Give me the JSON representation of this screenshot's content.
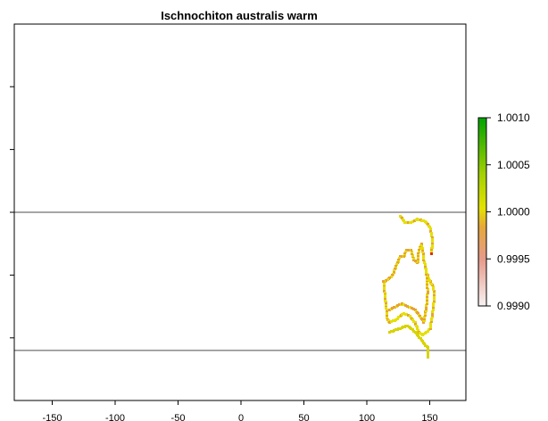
{
  "map": {
    "title": "Ischnochiton australis warm",
    "x_axis": {
      "range": [
        -190,
        180
      ],
      "ticks": [
        -150,
        -100,
        -50,
        0,
        50,
        100,
        150
      ],
      "tick_labels": [
        "-150",
        "-100",
        "-50",
        "0",
        "50",
        "100",
        "150"
      ]
    },
    "y_axis": {
      "range": [
        -90,
        90
      ],
      "ticks": [
        -80,
        -60,
        -40,
        -20,
        0,
        20,
        40,
        60,
        80
      ]
    },
    "reference_lines_lat": [
      0,
      -44
    ],
    "colors": {
      "line": "#4d4d4d",
      "frame": "#000000"
    },
    "legend": {
      "labels": [
        "1.0010",
        "1.0005",
        "1.0000",
        "0.9995",
        "0.9990"
      ],
      "values": [
        1.001,
        1.0005,
        1.0,
        0.9995,
        0.999
      ],
      "color_stops": [
        "#f2f2f2",
        "#e8a0a0",
        "#e6a24d",
        "#e2e400",
        "#9fd000",
        "#00a600"
      ]
    },
    "presence": {
      "coast_west": [
        [
          113,
          -22
        ],
        [
          114,
          -26
        ],
        [
          115,
          -30
        ],
        [
          116,
          -34
        ],
        [
          118,
          -35
        ]
      ],
      "coast_south": [
        [
          118,
          -35
        ],
        [
          123,
          -34
        ],
        [
          129,
          -32
        ],
        [
          134,
          -33
        ],
        [
          138,
          -35
        ],
        [
          141,
          -38
        ],
        [
          144,
          -39
        ],
        [
          147,
          -38
        ],
        [
          150,
          -37
        ]
      ],
      "coast_east": [
        [
          150,
          -37
        ],
        [
          152,
          -32
        ],
        [
          153,
          -28
        ],
        [
          153,
          -25
        ],
        [
          152,
          -23
        ],
        [
          150,
          -22
        ],
        [
          147,
          -19
        ],
        [
          145,
          -15
        ],
        [
          144,
          -12
        ],
        [
          143,
          -10
        ]
      ],
      "coast_north": [
        [
          143,
          -10
        ],
        [
          141,
          -12
        ],
        [
          140,
          -16
        ],
        [
          137,
          -15
        ],
        [
          135,
          -12
        ],
        [
          131,
          -12
        ],
        [
          129,
          -14
        ],
        [
          126,
          -14
        ],
        [
          122,
          -18
        ],
        [
          120,
          -20
        ],
        [
          117,
          -21
        ],
        [
          114,
          -22
        ],
        [
          113,
          -22
        ]
      ],
      "inner_band": [
        [
          118,
          -31
        ],
        [
          122,
          -30
        ],
        [
          128,
          -29
        ],
        [
          133,
          -30
        ],
        [
          138,
          -31
        ],
        [
          142,
          -33
        ],
        [
          145,
          -35
        ]
      ],
      "east_band": [
        [
          145,
          -35
        ],
        [
          147,
          -30
        ],
        [
          148,
          -25
        ],
        [
          147,
          -19
        ]
      ],
      "north_cluster": [
        [
          126,
          -1
        ],
        [
          130,
          -3
        ],
        [
          135,
          -3
        ],
        [
          140,
          -2
        ],
        [
          147,
          -3
        ],
        [
          150,
          -5
        ],
        [
          152,
          -9
        ],
        [
          151,
          -13
        ]
      ],
      "yellow_strip": [
        [
          118,
          -38
        ],
        [
          125,
          -37
        ],
        [
          132,
          -36
        ],
        [
          138,
          -38
        ],
        [
          144,
          -41
        ],
        [
          148,
          -43
        ],
        [
          148,
          -46
        ]
      ],
      "peak_point": [
        151,
        -13
      ]
    }
  }
}
